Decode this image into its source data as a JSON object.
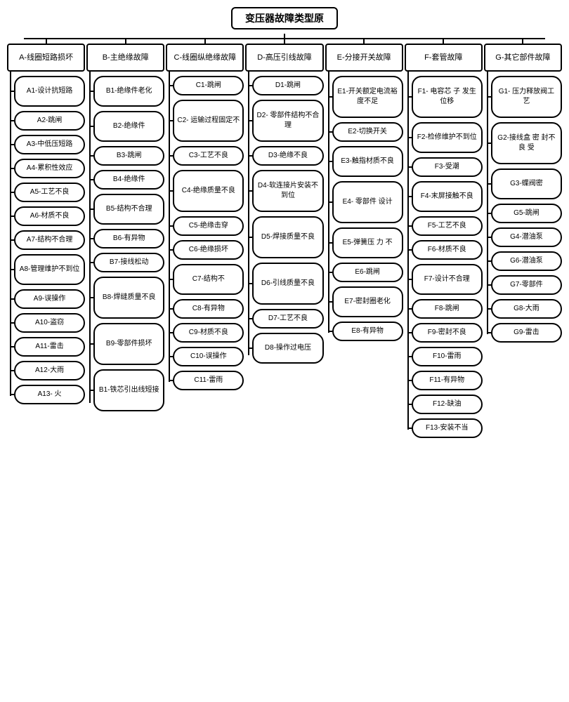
{
  "root": "变压器故障类型原",
  "categories": [
    {
      "label": "A-线圈短路损坏",
      "nodes": [
        {
          "t": "A1-设计抗短路",
          "c": "med"
        },
        {
          "t": "A2-跳闸"
        },
        {
          "t": "A3-中低压短路"
        },
        {
          "t": "A4-累积性效应"
        },
        {
          "t": "A5-工艺不良"
        },
        {
          "t": "A6-材质不良"
        },
        {
          "t": "A7-结构不合理"
        },
        {
          "t": "A8-管理维护不到位",
          "c": "med"
        },
        {
          "t": "A9-误操作"
        },
        {
          "t": "A10-盗窃"
        },
        {
          "t": "A11-雷击"
        },
        {
          "t": "A12-大雨"
        },
        {
          "t": "A13- 火"
        }
      ]
    },
    {
      "label": "B-主绝缘故障",
      "nodes": [
        {
          "t": "B1-绝缘件老化",
          "c": "med"
        },
        {
          "t": "B2-绝缘件",
          "c": "med"
        },
        {
          "t": "B3-跳闸"
        },
        {
          "t": "B4-绝缘件"
        },
        {
          "t": "B5-结构不合理",
          "c": "med"
        },
        {
          "t": "B6-有异物"
        },
        {
          "t": "B7-接线松动"
        },
        {
          "t": "B8-焊缝质量不良",
          "c": "tall"
        },
        {
          "t": "B9-零部件损坏",
          "c": "tall"
        },
        {
          "t": "B1-铁芯引出线短接",
          "c": "tall"
        }
      ]
    },
    {
      "label": "C-线圈纵绝缘故障",
      "nodes": [
        {
          "t": "C1-跳闸"
        },
        {
          "t": "C2- 运输过程固定不",
          "c": "tall"
        },
        {
          "t": "C3-工艺不良"
        },
        {
          "t": "C4-绝缘质量不良",
          "c": "tall"
        },
        {
          "t": "C5-绝缘击穿"
        },
        {
          "t": "C6-绝缘损坏"
        },
        {
          "t": "C7-结构不",
          "c": "med"
        },
        {
          "t": "C8-有异物"
        },
        {
          "t": "C9-材质不良"
        },
        {
          "t": "C10-误操作"
        },
        {
          "t": "C11-雷雨"
        }
      ]
    },
    {
      "label": "D-高压引线故障",
      "nodes": [
        {
          "t": "D1-跳闸"
        },
        {
          "t": "D2- 零部件结构不合理",
          "c": "tall"
        },
        {
          "t": "D3-绝缘不良"
        },
        {
          "t": "D4-软连接片安装不到位",
          "c": "tall"
        },
        {
          "t": "D5-焊接质量不良",
          "c": "tall"
        },
        {
          "t": "D6-引线质量不良",
          "c": "tall"
        },
        {
          "t": "D7-工艺不良"
        },
        {
          "t": "D8-操作过电压",
          "c": "med"
        }
      ]
    },
    {
      "label": "E-分接开关故障",
      "nodes": [
        {
          "t": "E1-开关额定电流裕度不足",
          "c": "tall"
        },
        {
          "t": "E2-切换开关"
        },
        {
          "t": "E3-触指材质不良",
          "c": "med"
        },
        {
          "t": "E4- 零部件 设计",
          "c": "tall"
        },
        {
          "t": "E5-弹簧压 力 不",
          "c": "med"
        },
        {
          "t": "E6-跳闸"
        },
        {
          "t": "E7-密封圈老化",
          "c": "med"
        },
        {
          "t": "E8-有异物"
        }
      ]
    },
    {
      "label": "F-套管故障",
      "nodes": [
        {
          "t": "F1- 电容芯 子 发生位移",
          "c": "tall"
        },
        {
          "t": "F2-检修维护不到位",
          "c": "med"
        },
        {
          "t": "F3-受潮"
        },
        {
          "t": "F4-末屏接触不良",
          "c": "med"
        },
        {
          "t": "F5-工艺不良"
        },
        {
          "t": "F6-材质不良"
        },
        {
          "t": "F7-设计不合理",
          "c": "med"
        },
        {
          "t": "F8-跳闸"
        },
        {
          "t": "F9-密封不良"
        },
        {
          "t": "F10-雷雨"
        },
        {
          "t": "F11-有异物"
        },
        {
          "t": "F12-缺油"
        },
        {
          "t": "F13-安装不当"
        }
      ]
    },
    {
      "label": "G-其它部件故障",
      "nodes": [
        {
          "t": "G1- 压力释放阀工艺",
          "c": "tall"
        },
        {
          "t": "G2-接线盒 密 封不 良 受",
          "c": "tall"
        },
        {
          "t": "G3-蝶阀密",
          "c": "med"
        },
        {
          "t": "G5-跳闸"
        },
        {
          "t": "G4-潜油泵"
        },
        {
          "t": "G6-潜油泵"
        },
        {
          "t": "G7-零部件"
        },
        {
          "t": "G8-大雨"
        },
        {
          "t": "G9-雷击"
        }
      ]
    }
  ]
}
